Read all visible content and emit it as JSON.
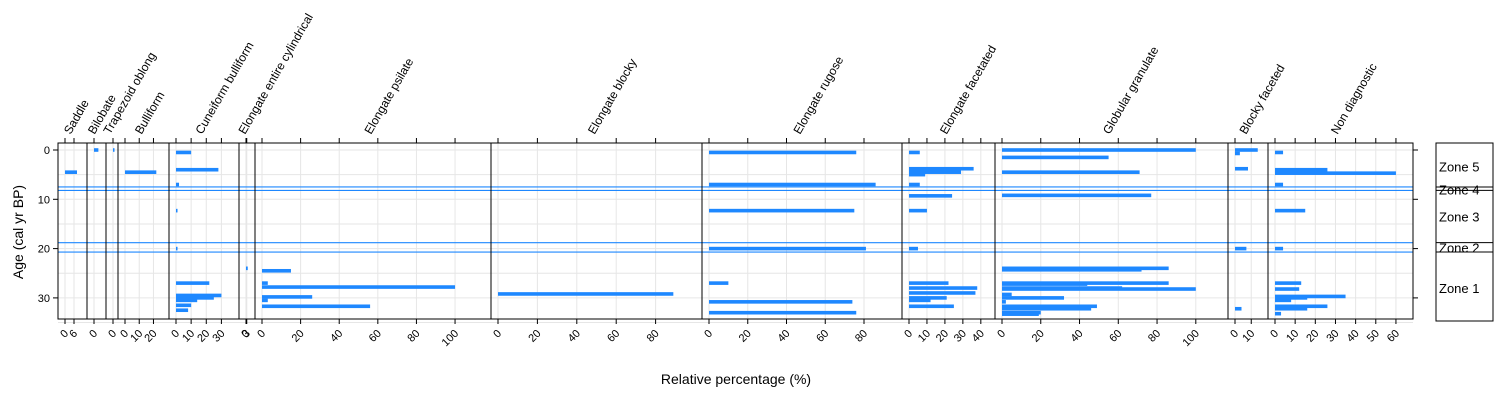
{
  "chart_data": {
    "type": "bar",
    "orientation": "horizontal",
    "xlabel": "Relative percentage (%)",
    "ylabel": "Age (cal yr BP)",
    "ylim": [
      0,
      35
    ],
    "yticks": [
      0,
      10,
      20,
      30
    ],
    "grid": true,
    "colors": {
      "bar": "#1e88ff",
      "zone_line": "#1e88ff",
      "axis": "#000000",
      "grid": "#e6e6e6"
    },
    "zone_boundaries": [
      7.5,
      8.2,
      18.8,
      20.7
    ],
    "zones": [
      {
        "name": "Zone 5",
        "y": 3.3
      },
      {
        "name": "Zone 4",
        "y": 8.0
      },
      {
        "name": "Zone 3",
        "y": 13.5
      },
      {
        "name": "Zone 2",
        "y": 19.8
      },
      {
        "name": "Zone 1",
        "y": 28.0
      }
    ],
    "panels": [
      {
        "name": "Saddle",
        "xmax": 10,
        "ticks": [
          0,
          6
        ],
        "bars": [
          {
            "y": 4.5,
            "v": 8
          }
        ]
      },
      {
        "name": "Bilobate",
        "xmax": 8,
        "ticks": [
          0
        ],
        "bars": [
          {
            "y": 0,
            "v": 7
          }
        ]
      },
      {
        "name": "Trapezoid oblong",
        "xmax": 4,
        "ticks": [
          0
        ],
        "bars": [
          {
            "y": 0,
            "v": 3
          }
        ]
      },
      {
        "name": "Bulliform",
        "xmax": 26,
        "ticks": [
          0,
          10,
          20
        ],
        "bars": [
          {
            "y": 4.5,
            "v": 22
          }
        ]
      },
      {
        "name": "Cuneiform bulliform",
        "xmax": 37,
        "ticks": [
          0,
          10,
          20,
          30
        ],
        "bars": [
          {
            "y": 0.5,
            "v": 10
          },
          {
            "y": 4,
            "v": 28
          },
          {
            "y": 7,
            "v": 2
          },
          {
            "y": 12.3,
            "v": 1
          },
          {
            "y": 20,
            "v": 1
          },
          {
            "y": 27,
            "v": 22
          },
          {
            "y": 29.5,
            "v": 30
          },
          {
            "y": 30,
            "v": 25
          },
          {
            "y": 30.5,
            "v": 14
          },
          {
            "y": 31.5,
            "v": 10
          },
          {
            "y": 32.5,
            "v": 8
          }
        ]
      },
      {
        "name": "Elongate entire cylindrical",
        "xmax": 8,
        "ticks": [
          0,
          3
        ],
        "bars": [
          {
            "y": 24,
            "v": 7
          }
        ]
      },
      {
        "name": "Elongate psilate",
        "xmax": 115,
        "ticks": [
          0,
          20,
          40,
          60,
          80,
          100
        ],
        "bars": [
          {
            "y": 24.5,
            "v": 15
          },
          {
            "y": 27,
            "v": 3
          },
          {
            "y": 27.8,
            "v": 100
          },
          {
            "y": 29.8,
            "v": 26
          },
          {
            "y": 30.5,
            "v": 3
          },
          {
            "y": 31.7,
            "v": 56
          }
        ]
      },
      {
        "name": "Elongate blocky",
        "xmax": 100,
        "ticks": [
          0,
          20,
          40,
          60,
          80
        ],
        "bars": [
          {
            "y": 29.2,
            "v": 89
          }
        ]
      },
      {
        "name": "Elongate rugose",
        "xmax": 96,
        "ticks": [
          0,
          20,
          40,
          60,
          80
        ],
        "bars": [
          {
            "y": 0.5,
            "v": 76
          },
          {
            "y": 7,
            "v": 86
          },
          {
            "y": 12.3,
            "v": 75
          },
          {
            "y": 20,
            "v": 81
          },
          {
            "y": 27,
            "v": 10
          },
          {
            "y": 30.8,
            "v": 74
          },
          {
            "y": 33,
            "v": 76
          }
        ]
      },
      {
        "name": "Elongate facetated",
        "xmax": 44,
        "ticks": [
          0,
          10,
          20,
          30,
          40
        ],
        "bars": [
          {
            "y": 0.5,
            "v": 6
          },
          {
            "y": 3.8,
            "v": 36
          },
          {
            "y": 4.5,
            "v": 29
          },
          {
            "y": 5,
            "v": 9
          },
          {
            "y": 7,
            "v": 6
          },
          {
            "y": 9.3,
            "v": 24
          },
          {
            "y": 12.3,
            "v": 10
          },
          {
            "y": 20,
            "v": 5
          },
          {
            "y": 27,
            "v": 22
          },
          {
            "y": 28,
            "v": 38
          },
          {
            "y": 29,
            "v": 37
          },
          {
            "y": 30,
            "v": 21
          },
          {
            "y": 30.5,
            "v": 12
          },
          {
            "y": 31.7,
            "v": 25
          }
        ]
      },
      {
        "name": "Globular granulate",
        "xmax": 113,
        "ticks": [
          0,
          20,
          40,
          60,
          80,
          100
        ],
        "bars": [
          {
            "y": 0,
            "v": 100
          },
          {
            "y": 1.5,
            "v": 55
          },
          {
            "y": 4.5,
            "v": 71
          },
          {
            "y": 9.2,
            "v": 77
          },
          {
            "y": 24,
            "v": 86
          },
          {
            "y": 24.3,
            "v": 72
          },
          {
            "y": 27,
            "v": 86
          },
          {
            "y": 27.2,
            "v": 44
          },
          {
            "y": 28,
            "v": 62
          },
          {
            "y": 28.2,
            "v": 100
          },
          {
            "y": 29.3,
            "v": 5
          },
          {
            "y": 30,
            "v": 32
          },
          {
            "y": 30.8,
            "v": 2
          },
          {
            "y": 31.7,
            "v": 49
          },
          {
            "y": 32.2,
            "v": 46
          },
          {
            "y": 33,
            "v": 20
          },
          {
            "y": 33.3,
            "v": 19
          }
        ]
      },
      {
        "name": "Blocky faceted",
        "xmax": 16,
        "ticks": [
          0,
          10
        ],
        "bars": [
          {
            "y": 0,
            "v": 14
          },
          {
            "y": 0.7,
            "v": 3
          },
          {
            "y": 3.8,
            "v": 8
          },
          {
            "y": 20,
            "v": 7
          },
          {
            "y": 32.2,
            "v": 4
          }
        ]
      },
      {
        "name": "Non diagnostic",
        "xmax": 64,
        "ticks": [
          0,
          10,
          20,
          30,
          40,
          50,
          60
        ],
        "bars": [
          {
            "y": 0.5,
            "v": 4
          },
          {
            "y": 4,
            "v": 26
          },
          {
            "y": 4.7,
            "v": 60
          },
          {
            "y": 7,
            "v": 4
          },
          {
            "y": 12.3,
            "v": 15
          },
          {
            "y": 20,
            "v": 4
          },
          {
            "y": 27,
            "v": 13
          },
          {
            "y": 28.2,
            "v": 12
          },
          {
            "y": 29.7,
            "v": 35
          },
          {
            "y": 30,
            "v": 16
          },
          {
            "y": 30.5,
            "v": 8
          },
          {
            "y": 31.7,
            "v": 26
          },
          {
            "y": 32.2,
            "v": 16
          },
          {
            "y": 33.2,
            "v": 3
          }
        ]
      }
    ]
  }
}
